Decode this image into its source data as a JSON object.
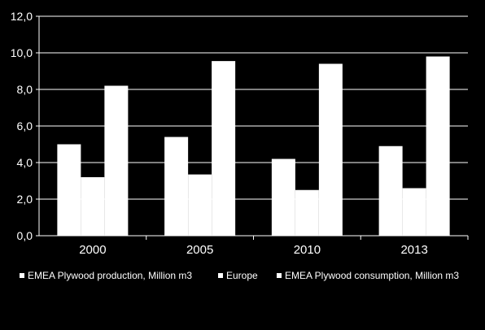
{
  "chart_data": {
    "type": "bar",
    "categories": [
      "2000",
      "2005",
      "2010",
      "2013"
    ],
    "series": [
      {
        "name": "EMEA Plywood production, Million m3",
        "values": [
          5.0,
          5.4,
          4.2,
          4.9
        ]
      },
      {
        "name": "Europe",
        "values": [
          3.2,
          3.35,
          2.5,
          2.6
        ]
      },
      {
        "name": "EMEA  Plywood consumption, Million m3",
        "values": [
          8.2,
          9.55,
          9.4,
          9.8
        ]
      }
    ],
    "ylim": [
      0,
      12
    ],
    "yticks": [
      "0,0",
      "2,0",
      "4,0",
      "6,0",
      "8,0",
      "10,0",
      "12,0"
    ],
    "ytick_values": [
      0,
      2,
      4,
      6,
      8,
      10,
      12
    ],
    "grid": true,
    "legend_position": "bottom",
    "title": "",
    "xlabel": "",
    "ylabel": ""
  },
  "colors": {
    "background": "#000000",
    "bar": "#ffffff",
    "axis": "#ffffff",
    "grid": "#ffffff",
    "text": "#ffffff"
  }
}
